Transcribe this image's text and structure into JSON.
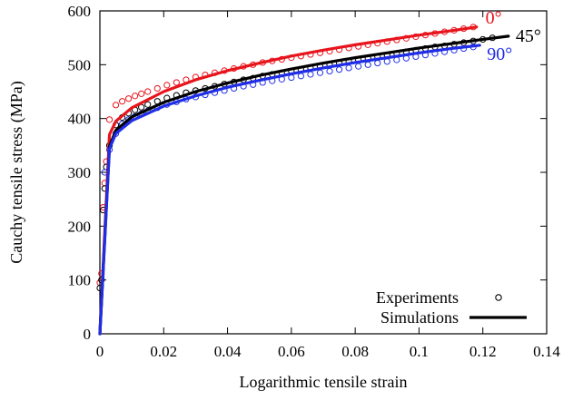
{
  "chart_data": {
    "type": "line",
    "xlabel": "Logarithmic tensile strain",
    "ylabel": "Cauchy tensile stress (MPa)",
    "xlim": [
      0,
      0.14
    ],
    "ylim": [
      0,
      600
    ],
    "x_ticks": [
      0,
      0.02,
      0.04,
      0.06,
      0.08,
      0.1,
      0.12,
      0.14
    ],
    "x_tick_labels": [
      "0",
      "0.02",
      "0.04",
      "0.06",
      "0.08",
      "0.1",
      "0.12",
      "0.14"
    ],
    "y_ticks": [
      0,
      100,
      200,
      300,
      400,
      500,
      600
    ],
    "y_tick_labels": [
      "0",
      "100",
      "200",
      "300",
      "400",
      "500",
      "600"
    ],
    "grid": false,
    "legend": {
      "position": "bottom-right",
      "entries": [
        {
          "label": "Experiments",
          "style": "open-circle-markers"
        },
        {
          "label": "Simulations",
          "style": "solid-line"
        }
      ]
    },
    "series": [
      {
        "name": "0°",
        "color": "#e8141c",
        "simulation": {
          "x": [
            0,
            0.003,
            0.005,
            0.01,
            0.02,
            0.03,
            0.04,
            0.05,
            0.06,
            0.07,
            0.08,
            0.09,
            0.1,
            0.11,
            0.118
          ],
          "y": [
            0,
            370,
            395,
            420,
            450,
            472,
            489,
            503,
            516,
            527,
            537,
            546,
            555,
            563,
            570
          ]
        },
        "experiment": {
          "x": [
            0,
            0.0005,
            0.001,
            0.0015,
            0.002,
            0.003,
            0.005,
            0.007,
            0.009,
            0.011,
            0.013,
            0.015,
            0.018,
            0.021,
            0.024,
            0.027,
            0.03,
            0.033,
            0.036,
            0.039,
            0.042,
            0.045,
            0.048,
            0.051,
            0.054,
            0.057,
            0.06,
            0.063,
            0.066,
            0.069,
            0.072,
            0.075,
            0.078,
            0.081,
            0.084,
            0.087,
            0.09,
            0.093,
            0.096,
            0.099,
            0.102,
            0.105,
            0.108,
            0.111,
            0.114,
            0.117
          ],
          "y": [
            95,
            112,
            235,
            280,
            320,
            398,
            425,
            432,
            437,
            442,
            446,
            450,
            456,
            462,
            467,
            472,
            477,
            481,
            485,
            489,
            493,
            497,
            500,
            504,
            507,
            510,
            513,
            516,
            519,
            522,
            525,
            528,
            531,
            534,
            537,
            540,
            543,
            546,
            549,
            552,
            555,
            558,
            561,
            564,
            567,
            570
          ]
        }
      },
      {
        "name": "45°",
        "color": "#000000",
        "simulation": {
          "x": [
            0,
            0.003,
            0.005,
            0.01,
            0.02,
            0.03,
            0.04,
            0.05,
            0.06,
            0.07,
            0.08,
            0.09,
            0.1,
            0.11,
            0.12,
            0.128
          ],
          "y": [
            0,
            348,
            378,
            403,
            430,
            450,
            466,
            480,
            492,
            503,
            513,
            522,
            531,
            539,
            547,
            553
          ]
        },
        "experiment": {
          "x": [
            0,
            0.0005,
            0.001,
            0.0015,
            0.002,
            0.003,
            0.005,
            0.007,
            0.009,
            0.011,
            0.013,
            0.015,
            0.018,
            0.021,
            0.024,
            0.027,
            0.03,
            0.033,
            0.036,
            0.039,
            0.042,
            0.045,
            0.048,
            0.051,
            0.054,
            0.057,
            0.06,
            0.063,
            0.066,
            0.069,
            0.072,
            0.075,
            0.078,
            0.081,
            0.084,
            0.087,
            0.09,
            0.093,
            0.096,
            0.099,
            0.102,
            0.105,
            0.108,
            0.111,
            0.114,
            0.117,
            0.12,
            0.123
          ],
          "y": [
            85,
            100,
            230,
            270,
            310,
            350,
            388,
            402,
            410,
            416,
            421,
            426,
            432,
            438,
            443,
            448,
            452,
            456,
            460,
            464,
            468,
            472,
            475,
            479,
            482,
            485,
            488,
            491,
            494,
            497,
            500,
            503,
            506,
            509,
            512,
            515,
            518,
            521,
            524,
            527,
            530,
            533,
            535,
            538,
            541,
            544,
            547,
            550
          ]
        }
      },
      {
        "name": "90°",
        "color": "#1f2ee6",
        "simulation": {
          "x": [
            0,
            0.003,
            0.005,
            0.01,
            0.02,
            0.03,
            0.04,
            0.05,
            0.06,
            0.07,
            0.08,
            0.09,
            0.1,
            0.11,
            0.119
          ],
          "y": [
            0,
            344,
            372,
            396,
            423,
            442,
            458,
            471,
            483,
            494,
            504,
            513,
            522,
            530,
            536
          ]
        },
        "experiment": {
          "x": [
            0.0015,
            0.003,
            0.005,
            0.007,
            0.009,
            0.011,
            0.013,
            0.015,
            0.018,
            0.021,
            0.024,
            0.027,
            0.03,
            0.033,
            0.036,
            0.039,
            0.042,
            0.045,
            0.048,
            0.051,
            0.054,
            0.057,
            0.06,
            0.063,
            0.066,
            0.069,
            0.072,
            0.075,
            0.078,
            0.081,
            0.084,
            0.087,
            0.09,
            0.093,
            0.096,
            0.099,
            0.102,
            0.105,
            0.108,
            0.111,
            0.114,
            0.117
          ],
          "y": [
            300,
            342,
            372,
            390,
            398,
            404,
            409,
            414,
            420,
            426,
            431,
            436,
            440,
            444,
            448,
            452,
            456,
            460,
            463,
            467,
            470,
            473,
            476,
            479,
            482,
            485,
            488,
            491,
            494,
            497,
            500,
            503,
            506,
            509,
            512,
            515,
            518,
            521,
            524,
            527,
            530,
            533
          ]
        }
      }
    ]
  }
}
